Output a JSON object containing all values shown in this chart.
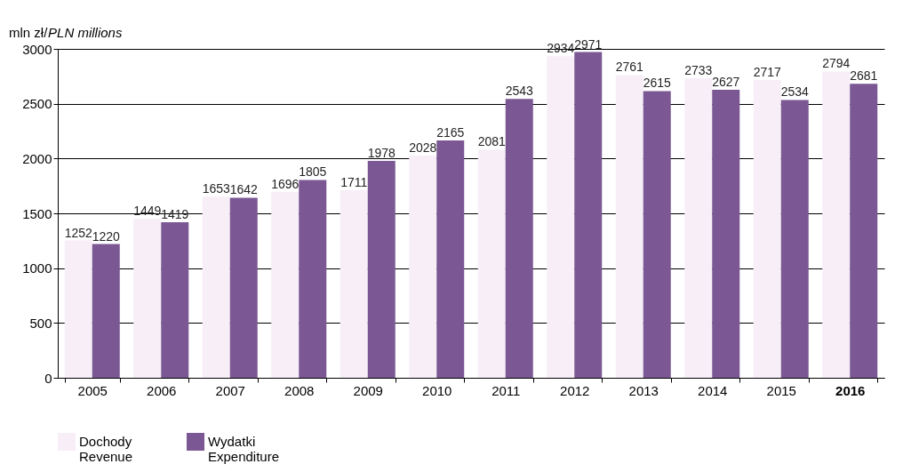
{
  "chart_data": {
    "type": "bar",
    "ylabel": "mln zł/PLN millions",
    "categories": [
      "2005",
      "2006",
      "2007",
      "2008",
      "2009",
      "2010",
      "2011",
      "2012",
      "2013",
      "2014",
      "2015",
      "2016"
    ],
    "series": [
      {
        "name": "Dochody\nRevenue",
        "color": "#f7eef8",
        "values": [
          1252,
          1449,
          1653,
          1696,
          1711,
          2028,
          2081,
          2934,
          2761,
          2733,
          2717,
          2794
        ]
      },
      {
        "name": "Wydatki\nExpenditure",
        "color": "#7b5893",
        "values": [
          1220,
          1419,
          1642,
          1805,
          1978,
          2165,
          2543,
          2971,
          2615,
          2627,
          2534,
          2681
        ]
      }
    ],
    "ylim": [
      0,
      3000
    ],
    "yticks": [
      0,
      500,
      1000,
      1500,
      2000,
      2500,
      3000
    ],
    "grid": "y",
    "data_labels": true,
    "legend": "bottom"
  }
}
